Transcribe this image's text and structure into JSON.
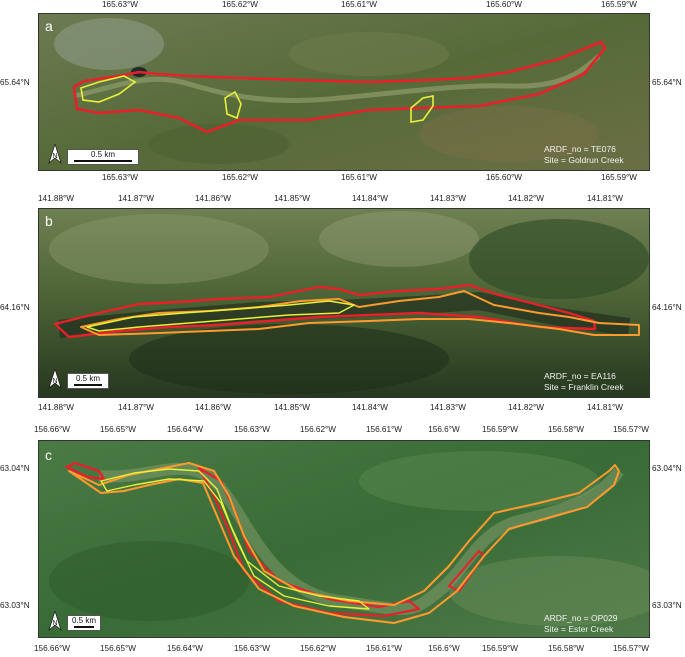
{
  "panels": [
    {
      "letter": "a",
      "top_ticks": [
        "165.63°W",
        "165.62°W",
        "165.61°W",
        "165.60°W",
        "165.59°W"
      ],
      "bottom_ticks": [
        "165.63°W",
        "165.62°W",
        "165.61°W",
        "165.60°W",
        "165.59°W"
      ],
      "lat_label": "65.64°N",
      "scale_label": "0.5 km",
      "north_label": "N",
      "id_line": "ARDF_no = TE076",
      "site_line": "Site = Goldrun Creek"
    },
    {
      "letter": "b",
      "top_ticks": [
        "141.88°W",
        "141.87°W",
        "141.86°W",
        "141.85°W",
        "141.84°W",
        "141.83°W",
        "141.82°W",
        "141.81°W"
      ],
      "bottom_ticks": [
        "141.88°W",
        "141.87°W",
        "141.86°W",
        "141.85°W",
        "141.84°W",
        "141.83°W",
        "141.82°W",
        "141.81°W"
      ],
      "lat_label": "64.16°N",
      "scale_label": "0.5 km",
      "north_label": "N",
      "id_line": "ARDF_no = EA116",
      "site_line": "Site = Franklin Creek"
    },
    {
      "letter": "c",
      "top_ticks": [
        "156.66°W",
        "156.65°W",
        "156.64°W",
        "156.63°W",
        "156.62°W",
        "156.61°W",
        "156.6°W",
        "156.59°W",
        "156.58°W",
        "156.57°W"
      ],
      "bottom_ticks": [
        "156.66°W",
        "156.65°W",
        "156.64°W",
        "156.63°W",
        "156.62°W",
        "156.61°W",
        "156.6°W",
        "156.59°W",
        "156.58°W",
        "156.57°W"
      ],
      "lat_top_label": "63.04°N",
      "lat_bottom_label": "63.03°N",
      "scale_label": "0.5 km",
      "north_label": "N",
      "id_line": "ARDF_no = OP029",
      "site_line": "Site = Ester Creek"
    }
  ],
  "colors": {
    "red_outline": "#e8202a",
    "orange_outline": "#ff9a2e",
    "yellow_outline": "#e8f03a",
    "terrain_a": "#5b6b3e",
    "terrain_b": "#3f5a2e",
    "terrain_c": "#3d6e3a"
  }
}
